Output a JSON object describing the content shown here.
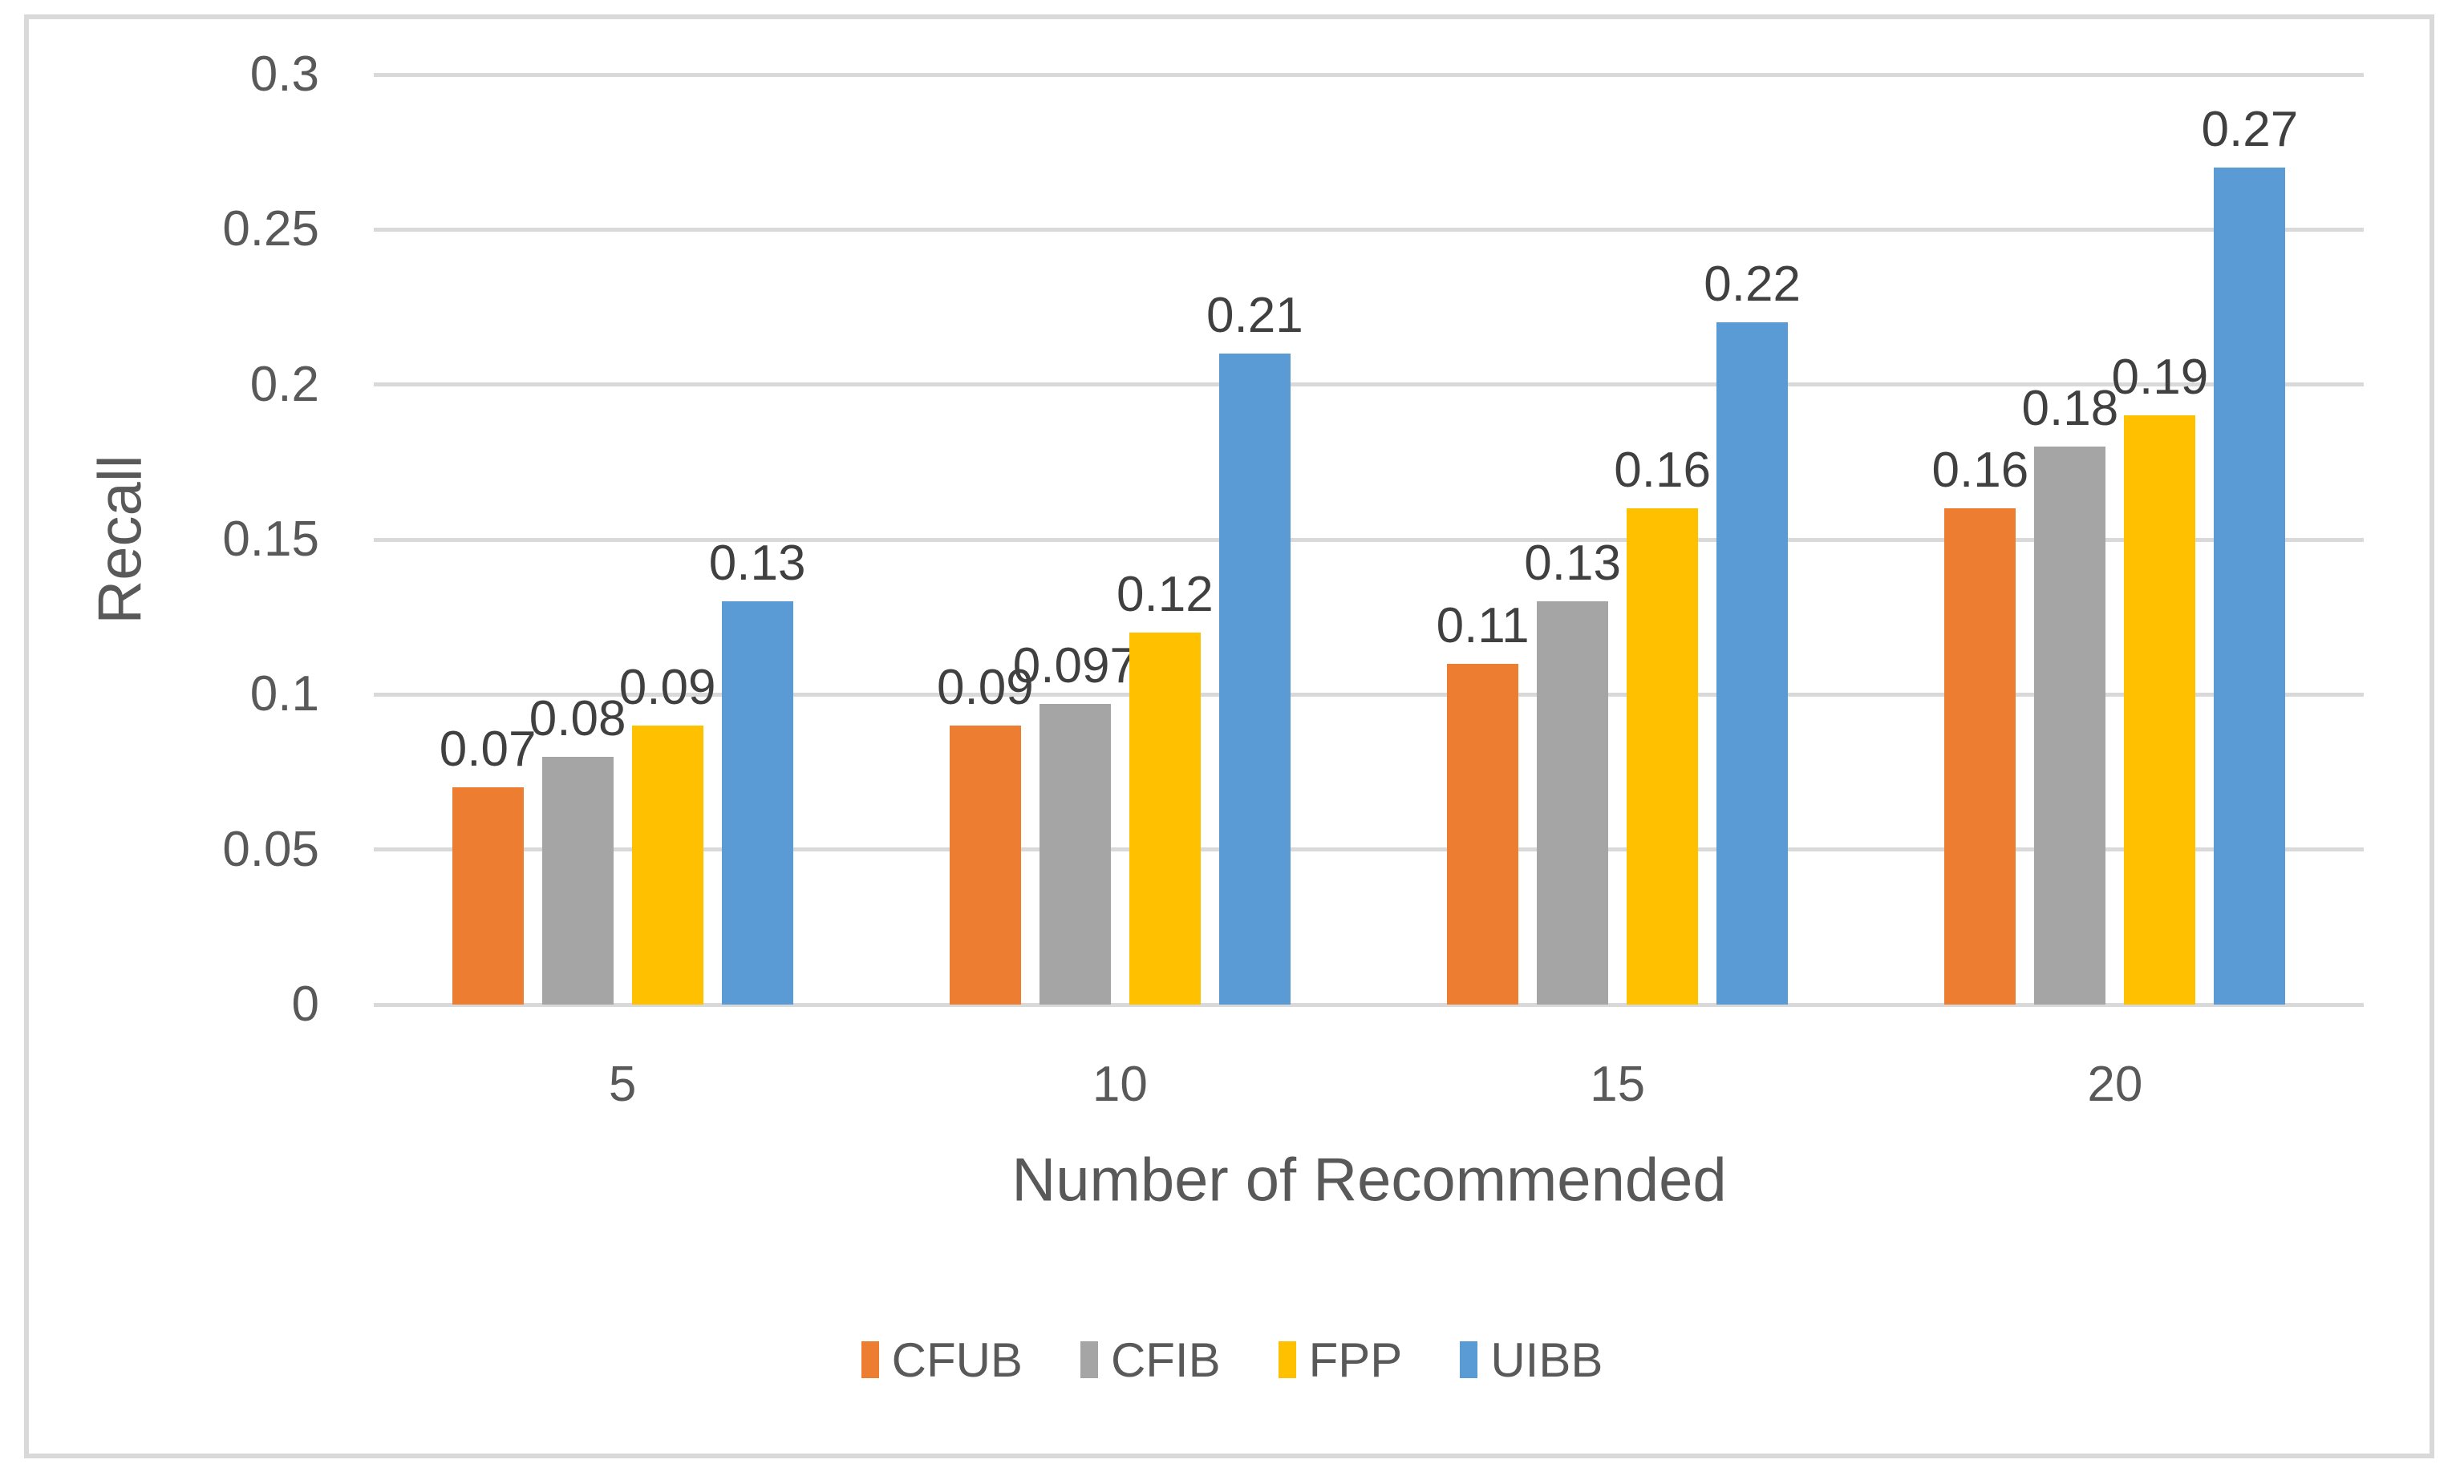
{
  "chart_data": {
    "type": "bar",
    "title": "",
    "xlabel": "Number of Recommended",
    "ylabel": "Recall",
    "categories": [
      "5",
      "10",
      "15",
      "20"
    ],
    "series": [
      {
        "name": "CFUB",
        "color": "#ED7D31",
        "values": [
          0.07,
          0.09,
          0.11,
          0.16
        ]
      },
      {
        "name": "CFIB",
        "color": "#A5A5A5",
        "values": [
          0.08,
          0.097,
          0.13,
          0.18
        ]
      },
      {
        "name": "FPP",
        "color": "#FFC000",
        "values": [
          0.09,
          0.12,
          0.16,
          0.19
        ]
      },
      {
        "name": "UIBB",
        "color": "#5B9BD5",
        "values": [
          0.13,
          0.21,
          0.22,
          0.27
        ]
      }
    ],
    "data_labels": [
      "0.07",
      "0.08",
      "0.09",
      "0.13",
      "0.09",
      "0.097",
      "0.12",
      "0.21",
      "0.11",
      "0.13",
      "0.16",
      "0.22",
      "0.16",
      "0.18",
      "0.19",
      "0.27"
    ],
    "ylim": [
      0,
      0.3
    ],
    "ytick_step": 0.05,
    "yticks": [
      "0",
      "0.05",
      "0.1",
      "0.15",
      "0.2",
      "0.25",
      "0.3"
    ],
    "grid": true,
    "legend_position": "bottom"
  },
  "colors": {
    "background": "#FFFFFF",
    "frame_border": "#D9D9D9",
    "gridline": "#D9D9D9",
    "axis_text": "#595959",
    "data_label_text": "#404040"
  }
}
